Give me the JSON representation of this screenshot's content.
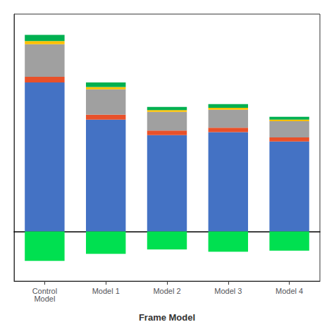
{
  "chart_data": {
    "type": "bar",
    "xlabel": "Frame Model",
    "categories": [
      "Control\nModel",
      "Model 1",
      "Model 2",
      "Model 3",
      "Model 4"
    ],
    "series": [
      {
        "color": "#4472C4",
        "values": [
          4.8,
          3.6,
          3.1,
          3.2,
          2.9
        ]
      },
      {
        "color": "#E8512A",
        "values": [
          0.18,
          0.16,
          0.15,
          0.14,
          0.13
        ]
      },
      {
        "color": "#A0A0A0",
        "values": [
          1.05,
          0.82,
          0.6,
          0.58,
          0.52
        ]
      },
      {
        "color": "#FFC000",
        "values": [
          0.1,
          0.07,
          0.06,
          0.06,
          0.05
        ]
      },
      {
        "color": "#00B050",
        "values": [
          0.2,
          0.15,
          0.1,
          0.12,
          0.09
        ]
      },
      {
        "color": "#00E050",
        "values": [
          -0.95,
          -0.72,
          -0.58,
          -0.65,
          -0.62
        ]
      }
    ],
    "stacked": true,
    "ylim": [
      -1.6,
      7.0
    ],
    "yticks": [],
    "tick_labels": "x",
    "grid": false
  }
}
